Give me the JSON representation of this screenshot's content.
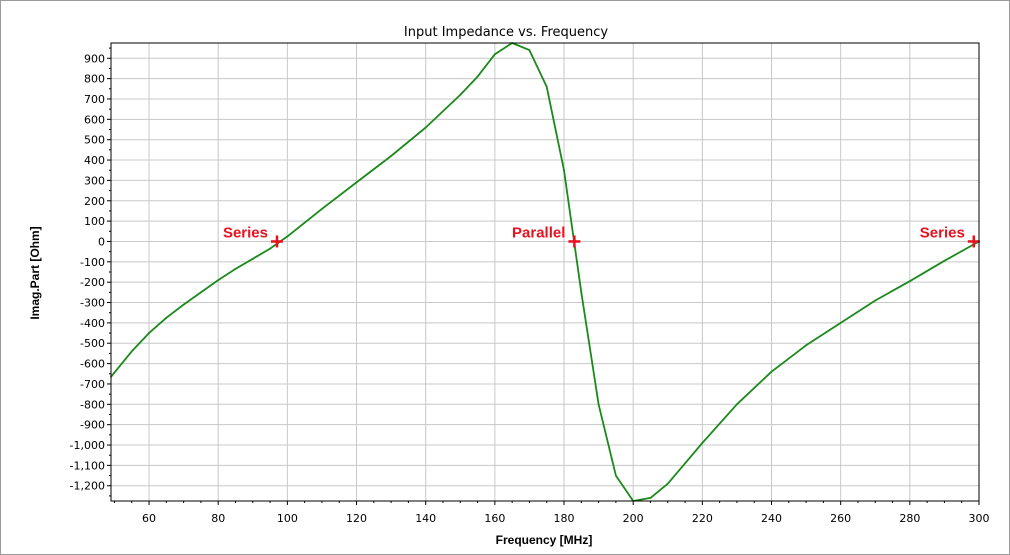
{
  "chart_data": {
    "type": "line",
    "title": "Input Impedance vs. Frequency",
    "xlabel": "Frequency [MHz]",
    "ylabel": "Imag.Part [Ohm]",
    "xlim": [
      49,
      300
    ],
    "ylim": [
      -1275,
      975
    ],
    "grid": true,
    "legend": "none",
    "x_ticks": [
      60,
      80,
      100,
      120,
      140,
      160,
      180,
      200,
      220,
      240,
      260,
      280,
      300
    ],
    "y_ticks": [
      900,
      800,
      700,
      600,
      500,
      400,
      300,
      200,
      100,
      0,
      -100,
      -200,
      -300,
      -400,
      -500,
      -600,
      -700,
      -800,
      -900,
      -1000,
      -1100,
      -1200
    ],
    "y_tick_labels": [
      "900",
      "800",
      "700",
      "600",
      "500",
      "400",
      "300",
      "200",
      "100",
      "0",
      "-100",
      "-200",
      "-300",
      "-400",
      "-500",
      "-600",
      "-700",
      "-800",
      "-900",
      "-1,000",
      "-1,100",
      "-1,200"
    ],
    "series": [
      {
        "color": "#1a8a1a",
        "x": [
          49,
          55,
          60,
          65,
          70,
          75,
          80,
          85,
          90,
          95,
          100,
          110,
          120,
          130,
          140,
          150,
          155,
          160,
          165,
          170,
          175,
          180,
          185,
          190,
          195,
          200,
          205,
          210,
          215,
          220,
          230,
          240,
          250,
          260,
          270,
          280,
          290,
          300
        ],
        "y": [
          -665,
          -540,
          -450,
          -375,
          -310,
          -250,
          -190,
          -135,
          -85,
          -35,
          25,
          160,
          290,
          420,
          560,
          720,
          810,
          920,
          975,
          940,
          760,
          350,
          -250,
          -800,
          -1150,
          -1275,
          -1260,
          -1190,
          -1090,
          -990,
          -800,
          -640,
          -510,
          -400,
          -290,
          -195,
          -95,
          0
        ]
      }
    ],
    "markers": [
      {
        "x": 97,
        "y": 0,
        "label": "Series",
        "color": "#e8111e"
      },
      {
        "x": 183,
        "y": 0,
        "label": "Parallel",
        "color": "#e8111e"
      },
      {
        "x": 298.5,
        "y": 0,
        "label": "Series",
        "color": "#e8111e"
      }
    ],
    "colors": {
      "grid": "#c8c8c8",
      "axis": "#000000",
      "marker": "#e8111e"
    }
  }
}
